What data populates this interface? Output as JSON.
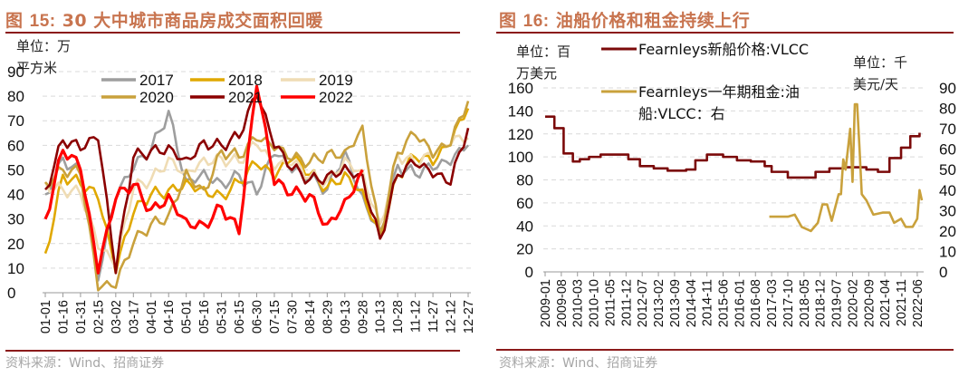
{
  "colors": {
    "title": "#c8744f",
    "rule": "#8b1a1a",
    "source": "#a6a6a6",
    "grid": "#d9d9d9"
  },
  "charts": [
    {
      "title_prefix": "图 ",
      "title_num": "15:",
      "title_text": " 30 大中城市商品房成交面积回暖",
      "source": "资料来源：Wind、招商证券"
    },
    {
      "title_prefix": "图 ",
      "title_num": "16:",
      "title_text": " 油船价格和租金持续上行",
      "source": "资料来源：Wind、招商证券"
    }
  ],
  "chart_data": [
    {
      "type": "line",
      "title": "图 15: 30 大中城市商品房成交面积回暖",
      "unit_label_lines": [
        "单位：万",
        "平方米"
      ],
      "ylim": [
        0,
        90
      ],
      "yticks": [
        0,
        10,
        20,
        30,
        40,
        50,
        60,
        70,
        80,
        90
      ],
      "grid": true,
      "legend": "top-center",
      "categories": [
        "01-01",
        "01-16",
        "01-31",
        "02-15",
        "03-02",
        "03-17",
        "04-01",
        "04-16",
        "05-01",
        "05-16",
        "05-31",
        "06-15",
        "06-30",
        "07-15",
        "07-30",
        "08-14",
        "08-29",
        "09-13",
        "09-28",
        "10-13",
        "10-28",
        "11-12",
        "11-27",
        "12-12",
        "12-27"
      ],
      "series": [
        {
          "name": "2017",
          "color": "#9e9e9e",
          "values": [
            40,
            55,
            48,
            5,
            38,
            50,
            58,
            74,
            46,
            50,
            45,
            48,
            40,
            56,
            49,
            46,
            42,
            58,
            40,
            25,
            52,
            48,
            50,
            52,
            60
          ]
        },
        {
          "name": "2018",
          "color": "#e0a800",
          "values": [
            16,
            48,
            44,
            38,
            8,
            32,
            40,
            42,
            46,
            43,
            40,
            45,
            52,
            46,
            54,
            48,
            43,
            49,
            42,
            24,
            48,
            55,
            52,
            60,
            75
          ]
        },
        {
          "name": "2019",
          "color": "#efdcb4",
          "values": [
            45,
            42,
            40,
            18,
            10,
            42,
            46,
            55,
            50,
            55,
            55,
            53,
            60,
            50,
            52,
            47,
            46,
            55,
            50,
            28,
            56,
            52,
            55,
            60,
            63
          ]
        },
        {
          "name": "2020",
          "color": "#c9a13c",
          "values": [
            45,
            50,
            48,
            1,
            2,
            20,
            28,
            32,
            50,
            42,
            58,
            55,
            62,
            58,
            54,
            53,
            57,
            58,
            68,
            24,
            57,
            64,
            55,
            60,
            78
          ]
        },
        {
          "name": "2021",
          "color": "#8b0000",
          "values": [
            42,
            62,
            58,
            62,
            8,
            55,
            58,
            60,
            55,
            62,
            60,
            63,
            80,
            59,
            50,
            46,
            48,
            52,
            48,
            22,
            48,
            52,
            47,
            44,
            67
          ]
        },
        {
          "name": "2022",
          "color": "#ff0000",
          "values": [
            30,
            58,
            50,
            8,
            38,
            44,
            34,
            40,
            30,
            28,
            35,
            24,
            84,
            44,
            40,
            40,
            28,
            38,
            50,
            null,
            null,
            null,
            null,
            null,
            null
          ]
        }
      ]
    },
    {
      "type": "line",
      "title": "图 16: 油船价格和租金持续上行",
      "left_unit_lines": [
        "单位：百",
        "万美元"
      ],
      "right_unit_lines": [
        "单位：千",
        "美元/天"
      ],
      "ylim_left": [
        0,
        160
      ],
      "ylim_right": [
        0,
        90
      ],
      "yticks_left": [
        0,
        20,
        40,
        60,
        80,
        100,
        120,
        140,
        160
      ],
      "yticks_right": [
        0,
        10,
        20,
        30,
        40,
        50,
        60,
        70,
        80,
        90
      ],
      "grid": true,
      "legend": "top-center",
      "categories": [
        "2009-01",
        "2009-08",
        "2010-03",
        "2010-10",
        "2011-05",
        "2011-12",
        "2012-07",
        "2013-02",
        "2013-09",
        "2014-04",
        "2014-11",
        "2015-06",
        "2016-01",
        "2016-08",
        "2017-03",
        "2017-10",
        "2018-05",
        "2018-12",
        "2019-07",
        "2020-02",
        "2020-09",
        "2021-04",
        "2021-11",
        "2022-06"
      ],
      "series": [
        {
          "name": "Fearnleys新船价格:VLCC",
          "legend_lines": [
            "Fearnleys新船价格:VLCC"
          ],
          "axis": "left",
          "color": "#7b0a0a",
          "x": [
            "2009-01",
            "2009-05",
            "2009-09",
            "2010-01",
            "2010-04",
            "2010-08",
            "2011-01",
            "2011-06",
            "2012-01",
            "2012-06",
            "2012-12",
            "2013-06",
            "2013-10",
            "2014-02",
            "2014-06",
            "2014-11",
            "2015-06",
            "2015-12",
            "2016-06",
            "2016-12",
            "2017-03",
            "2017-10",
            "2018-04",
            "2018-10",
            "2019-04",
            "2019-10",
            "2020-04",
            "2020-08",
            "2021-01",
            "2021-06",
            "2021-11",
            "2022-03",
            "2022-07"
          ],
          "values": [
            135,
            125,
            103,
            96,
            98,
            100,
            102,
            102,
            98,
            92,
            90,
            88,
            88,
            89,
            97,
            102,
            100,
            97,
            96,
            92,
            87,
            82,
            82,
            87,
            90,
            91,
            91,
            89,
            87,
            99,
            108,
            118,
            121
          ]
        },
        {
          "name": "Fearnleys一年期租金:油船:VLCC：右",
          "legend_lines": [
            "Fearnleys一年期租金:油",
            "船:VLCC：右"
          ],
          "axis": "right",
          "color": "#c9a13c",
          "x": [
            "2017-02",
            "2017-06",
            "2017-10",
            "2018-01",
            "2018-04",
            "2018-08",
            "2018-11",
            "2019-01",
            "2019-03",
            "2019-05",
            "2019-08",
            "2019-09",
            "2019-10",
            "2019-11",
            "2020-01",
            "2020-02",
            "2020-03",
            "2020-04",
            "2020-05",
            "2020-06",
            "2020-08",
            "2020-11",
            "2021-03",
            "2021-06",
            "2021-08",
            "2021-11",
            "2022-01",
            "2022-04",
            "2022-06",
            "2022-07",
            "2022-08"
          ],
          "values": [
            27,
            27,
            27,
            28,
            22,
            20,
            24,
            33,
            33,
            25,
            38,
            38,
            55,
            50,
            70,
            44,
            82,
            82,
            61,
            38,
            35,
            28,
            29,
            29,
            24,
            26,
            22,
            22,
            26,
            40,
            35
          ]
        }
      ]
    }
  ]
}
